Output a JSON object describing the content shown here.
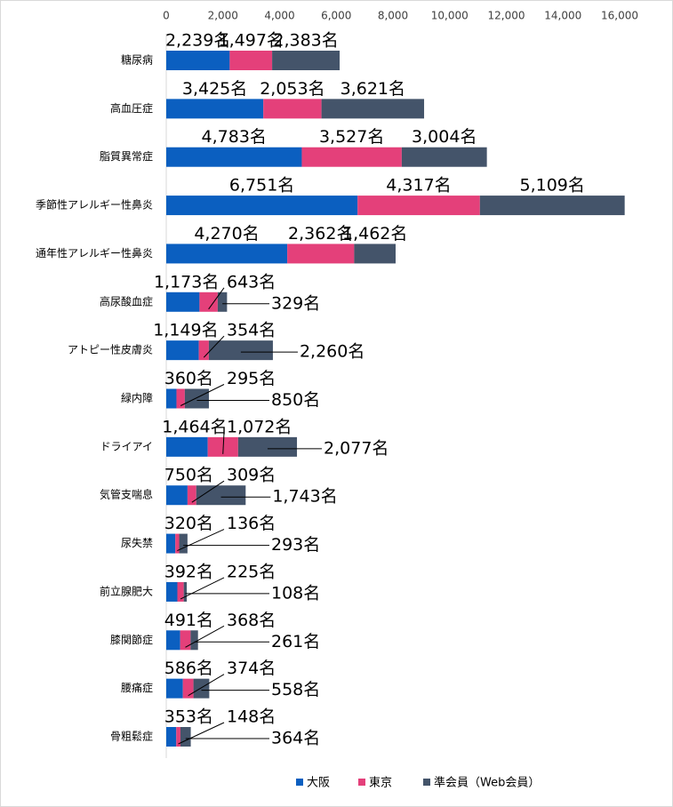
{
  "chart_data": {
    "type": "stacked_barh",
    "categories": [
      "糖尿病",
      "高血圧症",
      "脂質異常症",
      "季節性アレルギー性鼻炎",
      "通年性アレルギー性鼻炎",
      "高尿酸血症",
      "アトピー性皮膚炎",
      "緑内障",
      "ドライアイ",
      "気管支喘息",
      "尿失禁",
      "前立腺肥大",
      "膝関節症",
      "腰痛症",
      "骨粗鬆症"
    ],
    "series": [
      {
        "name": "大阪",
        "color": "#0b5fc0",
        "values": [
          2239,
          3425,
          4783,
          6751,
          4270,
          1173,
          1149,
          360,
          1464,
          750,
          320,
          392,
          491,
          586,
          353
        ],
        "value_labels": [
          "2,239名",
          "3,425名",
          "4,783名",
          "6,751名",
          "4,270名",
          "1,173名",
          "1,149名",
          "360名",
          "1,464名",
          "750名",
          "320名",
          "392名",
          "491名",
          "586名",
          "353名"
        ]
      },
      {
        "name": "東京",
        "color": "#e4407a",
        "values": [
          1497,
          2053,
          3527,
          4317,
          2362,
          643,
          354,
          295,
          1072,
          309,
          136,
          225,
          368,
          374,
          148
        ],
        "value_labels": [
          "1,497名",
          "2,053名",
          "3,527名",
          "4,317名",
          "2,362名",
          "643名",
          "354名",
          "295名",
          "1,072名",
          "309名",
          "136名",
          "225名",
          "368名",
          "374名",
          "148名"
        ]
      },
      {
        "name": "準会員（Web会員）",
        "color": "#44546a",
        "values": [
          2383,
          3621,
          3004,
          5109,
          1462,
          329,
          2260,
          850,
          2077,
          1743,
          293,
          108,
          261,
          558,
          364
        ],
        "value_labels": [
          "2,383名",
          "3,621名",
          "3,004名",
          "5,109名",
          "1,462名",
          "329名",
          "2,260名",
          "850名",
          "2,077名",
          "1,743名",
          "293名",
          "108名",
          "261名",
          "558名",
          "364名"
        ]
      }
    ],
    "xlim": [
      0,
      16000
    ],
    "xticks": [
      0,
      {
        "value": 2000,
        "label": "2,000"
      },
      {
        "value": 4000,
        "label": "4,000"
      },
      {
        "value": 6000,
        "label": "6,000"
      },
      {
        "value": 8000,
        "label": "8,000"
      },
      {
        "value": 10000,
        "label": "10,000"
      },
      {
        "value": 12000,
        "label": "12,000"
      },
      {
        "value": 14000,
        "label": "14,000"
      },
      {
        "value": 16000,
        "label": "16,000"
      }
    ],
    "legend": "bottom"
  }
}
